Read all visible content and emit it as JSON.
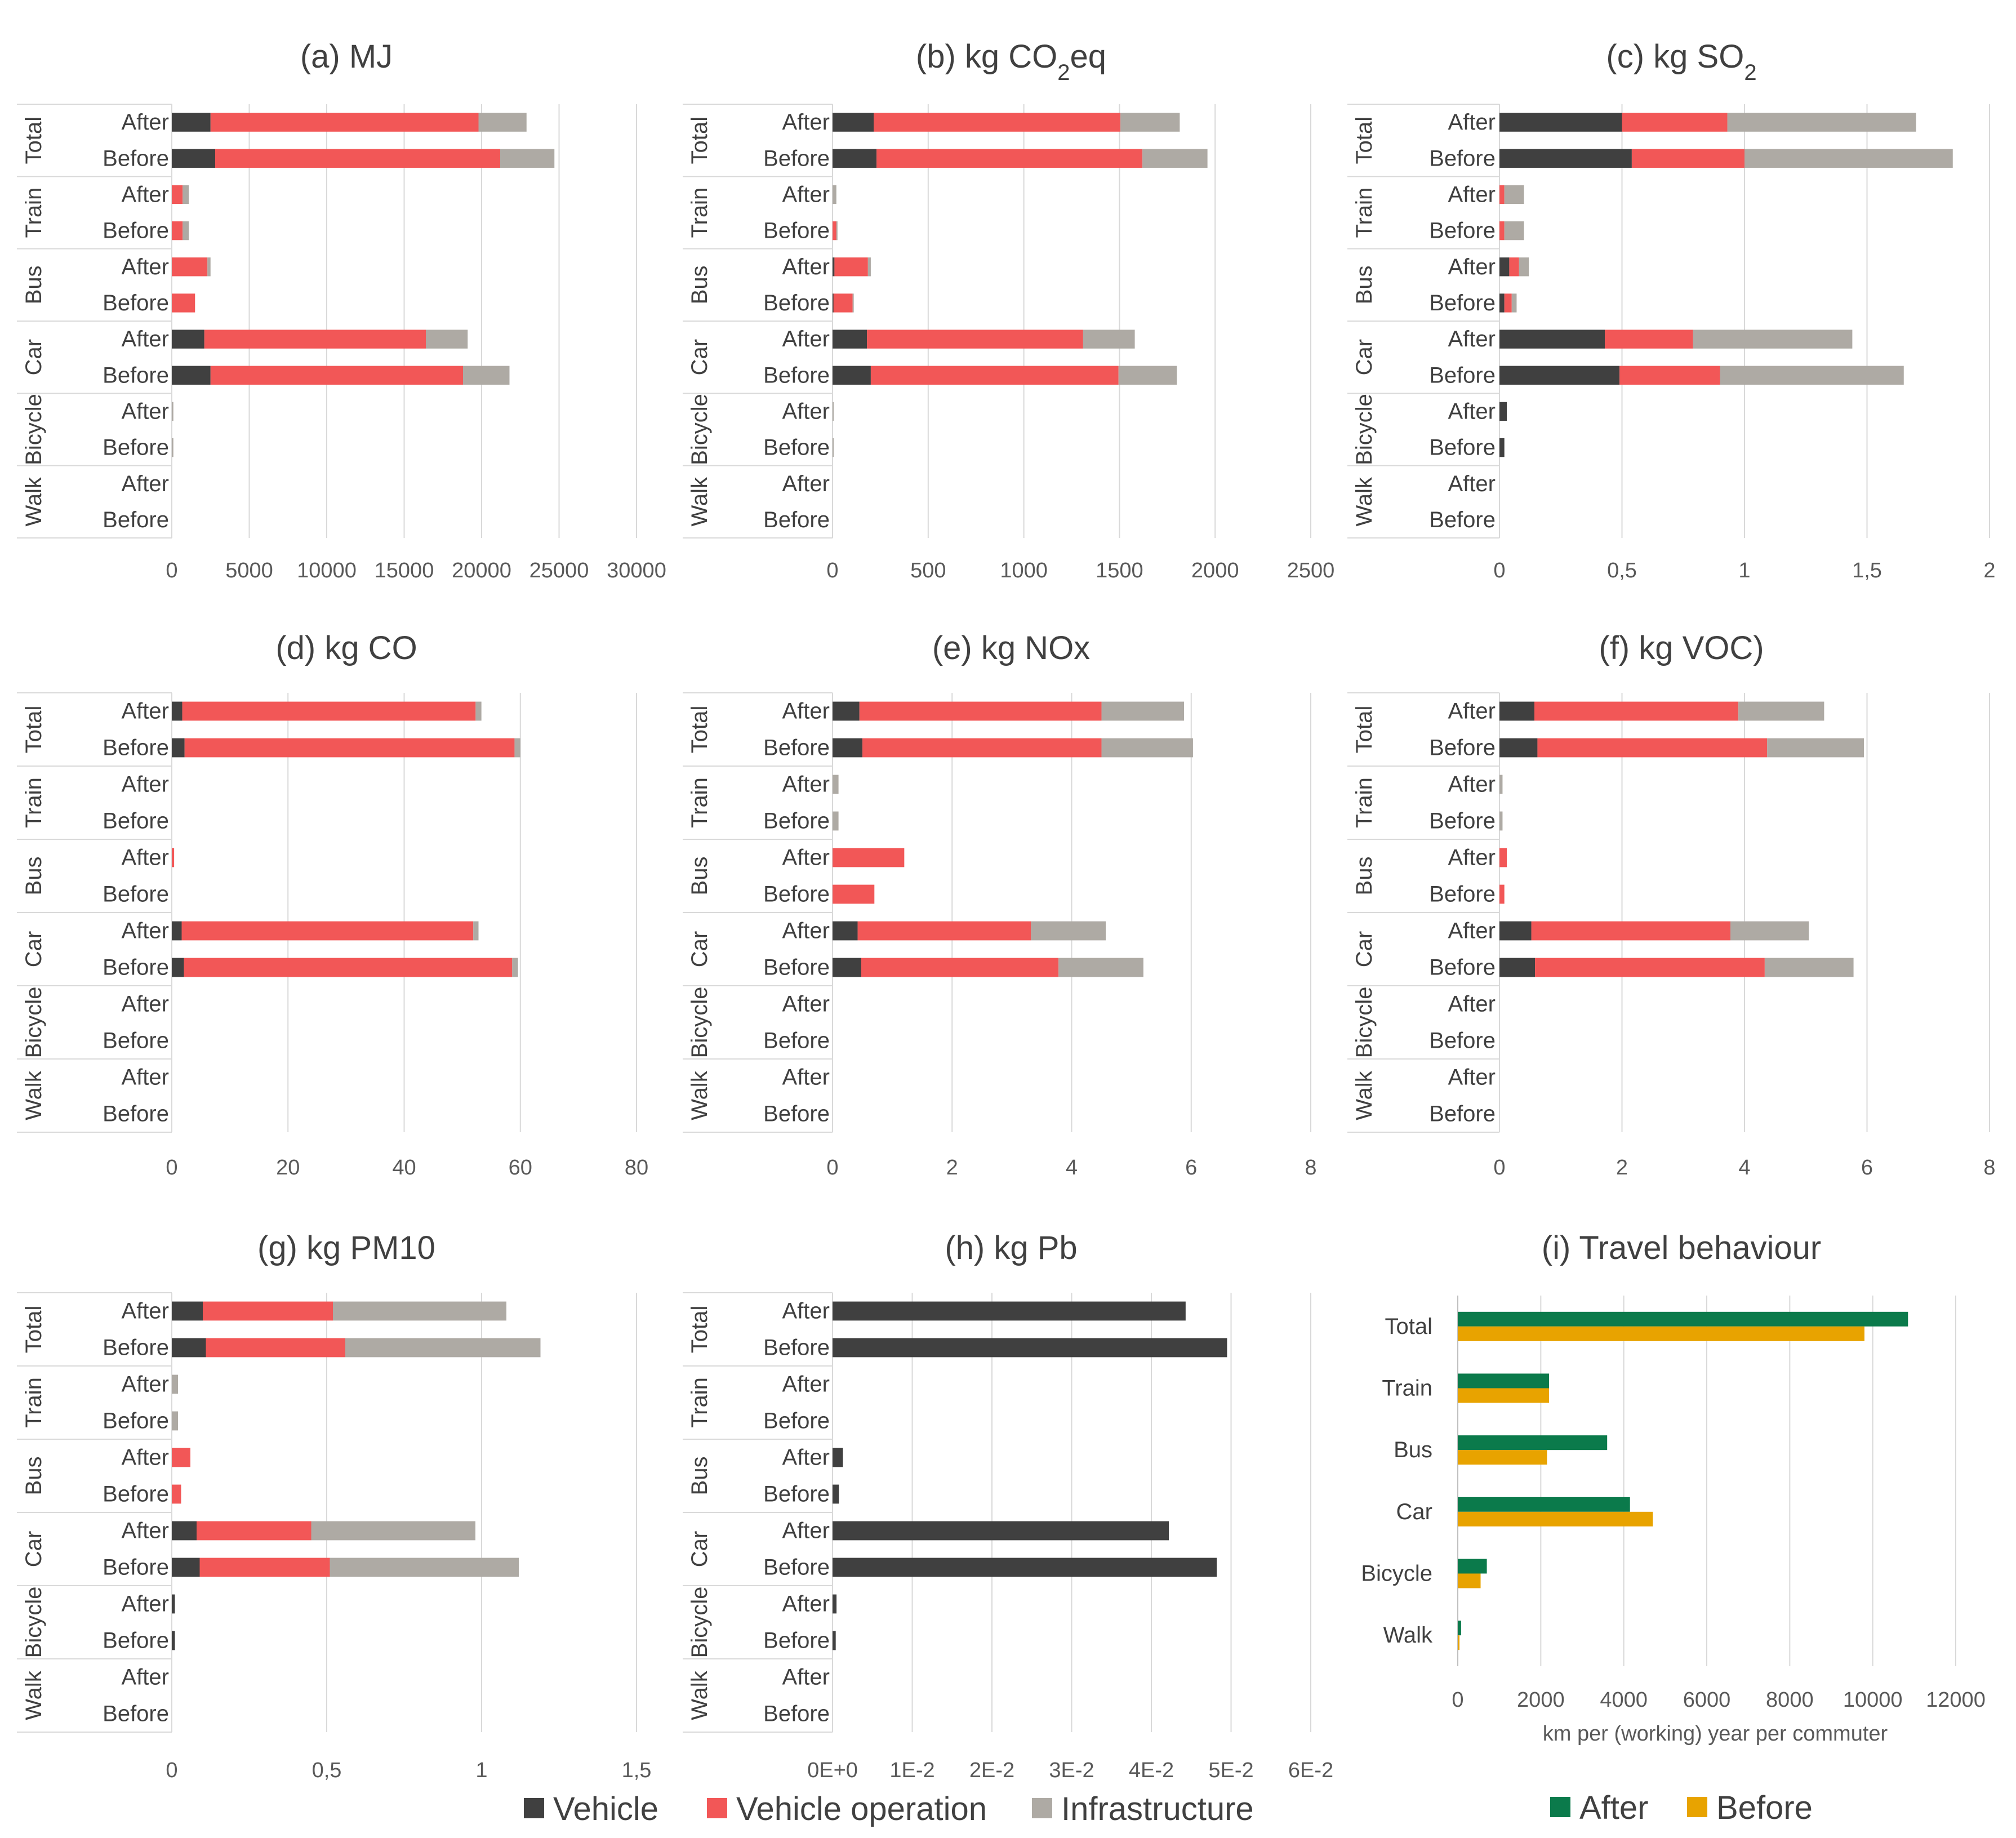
{
  "colors": {
    "vehicle": "#404040",
    "vehicle_operation": "#f25757",
    "infrastructure": "#aeaaa4",
    "after": "#0b7a4b",
    "before": "#e8a300",
    "grid": "#d9d9d9",
    "frame": "#d9d9d9"
  },
  "legend_components": [
    "Vehicle",
    "Vehicle operation",
    "Infrastructure"
  ],
  "legend_travel": [
    "After",
    "Before"
  ],
  "chart_data": [
    {
      "id": "a",
      "type": "bar",
      "stacked": true,
      "orientation": "horizontal",
      "title": "(a) MJ",
      "groups": [
        "Total",
        "Train",
        "Bus",
        "Car",
        "Bicycle",
        "Walk"
      ],
      "rows": [
        "After",
        "Before"
      ],
      "xlim": [
        0,
        30000
      ],
      "xticks": [
        "0",
        "5000",
        "10000",
        "15000",
        "20000",
        "25000",
        "30000"
      ],
      "tick_values": [
        0,
        5000,
        10000,
        15000,
        20000,
        25000,
        30000
      ],
      "series": [
        {
          "name": "Vehicle",
          "values": [
            2500,
            2800,
            0,
            0,
            0,
            0,
            2100,
            2500,
            0,
            0,
            0,
            0
          ]
        },
        {
          "name": "Vehicle operation",
          "values": [
            17300,
            18400,
            700,
            700,
            2300,
            1500,
            14300,
            16300,
            0,
            0,
            0,
            0
          ]
        },
        {
          "name": "Infrastructure",
          "values": [
            3100,
            3500,
            400,
            400,
            200,
            0,
            2700,
            3000,
            100,
            100,
            0,
            0
          ]
        }
      ]
    },
    {
      "id": "b",
      "type": "bar",
      "stacked": true,
      "orientation": "horizontal",
      "title": "(b) kg CO2eq",
      "groups": [
        "Total",
        "Train",
        "Bus",
        "Car",
        "Bicycle",
        "Walk"
      ],
      "rows": [
        "After",
        "Before"
      ],
      "xlim": [
        0,
        2500
      ],
      "xticks": [
        "0",
        "500",
        "1000",
        "1500",
        "2000",
        "2500"
      ],
      "tick_values": [
        0,
        500,
        1000,
        1500,
        2000,
        2500
      ],
      "series": [
        {
          "name": "Vehicle",
          "values": [
            215,
            230,
            0,
            0,
            10,
            5,
            180,
            200,
            0,
            0,
            0,
            0
          ]
        },
        {
          "name": "Vehicle operation",
          "values": [
            1290,
            1390,
            0,
            20,
            175,
            100,
            1130,
            1295,
            0,
            0,
            0,
            0
          ]
        },
        {
          "name": "Infrastructure",
          "values": [
            310,
            340,
            20,
            5,
            15,
            5,
            270,
            305,
            5,
            5,
            0,
            0
          ]
        }
      ]
    },
    {
      "id": "c",
      "type": "bar",
      "stacked": true,
      "orientation": "horizontal",
      "title": "(c) kg SO2",
      "groups": [
        "Total",
        "Train",
        "Bus",
        "Car",
        "Bicycle",
        "Walk"
      ],
      "rows": [
        "After",
        "Before"
      ],
      "xlim": [
        0,
        2
      ],
      "xticks": [
        "0",
        "0,5",
        "1",
        "1,5",
        "2"
      ],
      "tick_values": [
        0,
        0.5,
        1,
        1.5,
        2
      ],
      "series": [
        {
          "name": "Vehicle",
          "values": [
            0.5,
            0.54,
            0,
            0,
            0.04,
            0.02,
            0.43,
            0.49,
            0.03,
            0.02,
            0,
            0
          ]
        },
        {
          "name": "Vehicle operation",
          "values": [
            0.43,
            0.46,
            0.02,
            0.02,
            0.04,
            0.03,
            0.36,
            0.41,
            0,
            0,
            0,
            0
          ]
        },
        {
          "name": "Infrastructure",
          "values": [
            0.77,
            0.85,
            0.08,
            0.08,
            0.04,
            0.02,
            0.65,
            0.75,
            0,
            0,
            0,
            0
          ]
        }
      ]
    },
    {
      "id": "d",
      "type": "bar",
      "stacked": true,
      "orientation": "horizontal",
      "title": "(d) kg CO",
      "groups": [
        "Total",
        "Train",
        "Bus",
        "Car",
        "Bicycle",
        "Walk"
      ],
      "rows": [
        "After",
        "Before"
      ],
      "xlim": [
        0,
        80
      ],
      "xticks": [
        "0",
        "20",
        "40",
        "60",
        "80"
      ],
      "tick_values": [
        0,
        20,
        40,
        60,
        80
      ],
      "series": [
        {
          "name": "Vehicle",
          "values": [
            1.8,
            2.2,
            0,
            0,
            0,
            0,
            1.7,
            2.1,
            0,
            0,
            0,
            0
          ]
        },
        {
          "name": "Vehicle operation",
          "values": [
            50.5,
            56.8,
            0,
            0,
            0.4,
            0,
            50.2,
            56.5,
            0,
            0,
            0,
            0
          ]
        },
        {
          "name": "Infrastructure",
          "values": [
            1.0,
            1.0,
            0,
            0,
            0,
            0,
            0.9,
            1.0,
            0,
            0,
            0,
            0
          ]
        }
      ]
    },
    {
      "id": "e",
      "type": "bar",
      "stacked": true,
      "orientation": "horizontal",
      "title": "(e) kg NOx",
      "groups": [
        "Total",
        "Train",
        "Bus",
        "Car",
        "Bicycle",
        "Walk"
      ],
      "rows": [
        "After",
        "Before"
      ],
      "xlim": [
        0,
        8
      ],
      "xticks": [
        "0",
        "2",
        "4",
        "6",
        "8"
      ],
      "tick_values": [
        0,
        2,
        4,
        6,
        8
      ],
      "series": [
        {
          "name": "Vehicle",
          "values": [
            0.45,
            0.5,
            0,
            0,
            0,
            0,
            0.42,
            0.48,
            0,
            0,
            0,
            0
          ]
        },
        {
          "name": "Vehicle operation",
          "values": [
            4.05,
            4.0,
            0,
            0,
            1.2,
            0.7,
            2.9,
            3.3,
            0,
            0,
            0,
            0
          ]
        },
        {
          "name": "Infrastructure",
          "values": [
            1.38,
            1.53,
            0.1,
            0.1,
            0,
            0,
            1.25,
            1.42,
            0,
            0,
            0,
            0
          ]
        }
      ]
    },
    {
      "id": "f",
      "type": "bar",
      "stacked": true,
      "orientation": "horizontal",
      "title": "(f) kg VOC)",
      "groups": [
        "Total",
        "Train",
        "Bus",
        "Car",
        "Bicycle",
        "Walk"
      ],
      "rows": [
        "After",
        "Before"
      ],
      "xlim": [
        0,
        8
      ],
      "xticks": [
        "0",
        "2",
        "4",
        "6",
        "8"
      ],
      "tick_values": [
        0,
        2,
        4,
        6,
        8
      ],
      "series": [
        {
          "name": "Vehicle",
          "values": [
            0.57,
            0.62,
            0,
            0,
            0,
            0,
            0.52,
            0.58,
            0,
            0,
            0,
            0
          ]
        },
        {
          "name": "Vehicle operation",
          "values": [
            3.33,
            3.75,
            0,
            0,
            0.12,
            0.08,
            3.25,
            3.75,
            0,
            0,
            0,
            0
          ]
        },
        {
          "name": "Infrastructure",
          "values": [
            1.4,
            1.58,
            0.05,
            0.05,
            0,
            0,
            1.28,
            1.45,
            0,
            0,
            0,
            0
          ]
        }
      ]
    },
    {
      "id": "g",
      "type": "bar",
      "stacked": true,
      "orientation": "horizontal",
      "title": "(g) kg PM10",
      "groups": [
        "Total",
        "Train",
        "Bus",
        "Car",
        "Bicycle",
        "Walk"
      ],
      "rows": [
        "After",
        "Before"
      ],
      "xlim": [
        0,
        1.5
      ],
      "xticks": [
        "0",
        "0,5",
        "1",
        "1,5"
      ],
      "tick_values": [
        0,
        0.5,
        1,
        1.5
      ],
      "series": [
        {
          "name": "Vehicle",
          "values": [
            0.1,
            0.11,
            0,
            0,
            0,
            0,
            0.08,
            0.09,
            0.01,
            0.01,
            0,
            0
          ]
        },
        {
          "name": "Vehicle operation",
          "values": [
            0.42,
            0.45,
            0,
            0,
            0.06,
            0.03,
            0.37,
            0.42,
            0,
            0,
            0,
            0
          ]
        },
        {
          "name": "Infrastructure",
          "values": [
            0.56,
            0.63,
            0.02,
            0.02,
            0,
            0,
            0.53,
            0.61,
            0,
            0,
            0,
            0
          ]
        }
      ]
    },
    {
      "id": "h",
      "type": "bar",
      "stacked": true,
      "orientation": "horizontal",
      "title": "(h) kg Pb",
      "groups": [
        "Total",
        "Train",
        "Bus",
        "Car",
        "Bicycle",
        "Walk"
      ],
      "rows": [
        "After",
        "Before"
      ],
      "xlim": [
        0,
        0.06
      ],
      "xticks": [
        "0E+0",
        "1E-2",
        "2E-2",
        "3E-2",
        "4E-2",
        "5E-2",
        "6E-2"
      ],
      "tick_values": [
        0,
        0.01,
        0.02,
        0.03,
        0.04,
        0.05,
        0.06
      ],
      "series": [
        {
          "name": "Vehicle",
          "values": [
            0.0443,
            0.0495,
            0,
            0,
            0.0013,
            0.0008,
            0.0422,
            0.0482,
            0.0005,
            0.0004,
            0,
            0
          ]
        },
        {
          "name": "Vehicle operation",
          "values": [
            0,
            0,
            0,
            0,
            0,
            0,
            0,
            0,
            0,
            0,
            0,
            0
          ]
        },
        {
          "name": "Infrastructure",
          "values": [
            0,
            0,
            0,
            0,
            0,
            0,
            0,
            0,
            0,
            0,
            0,
            0
          ]
        }
      ]
    },
    {
      "id": "i",
      "type": "bar",
      "orientation": "horizontal",
      "title": "(i) Travel behaviour",
      "categories": [
        "Total",
        "Train",
        "Bus",
        "Car",
        "Bicycle",
        "Walk"
      ],
      "xlabel": "km per (working) year per commuter",
      "xlim": [
        0,
        12000
      ],
      "xticks": [
        "0",
        "2000",
        "4000",
        "6000",
        "8000",
        "10000",
        "12000"
      ],
      "tick_values": [
        0,
        2000,
        4000,
        6000,
        8000,
        10000,
        12000
      ],
      "series": [
        {
          "name": "After",
          "values": [
            10850,
            2200,
            3600,
            4150,
            700,
            80
          ]
        },
        {
          "name": "Before",
          "values": [
            9800,
            2200,
            2150,
            4700,
            550,
            30
          ]
        }
      ]
    }
  ]
}
